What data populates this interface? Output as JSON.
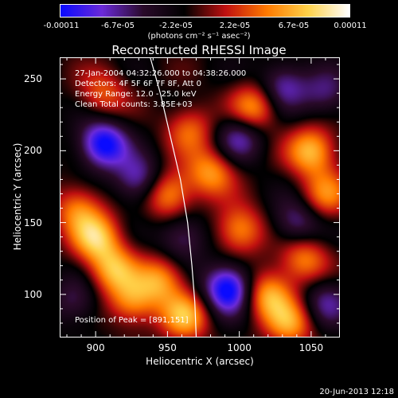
{
  "colorbar": {
    "ticks": [
      "-0.00011",
      "-6.7e-05",
      "-2.2e-05",
      "2.2e-05",
      "6.7e-05",
      "0.00011"
    ],
    "units": "(photons cm⁻² s⁻¹ asec⁻²)",
    "colors": [
      "#0a0aff",
      "#6b2ad8",
      "#2a0a2a",
      "#000000",
      "#c01010",
      "#ff7a00",
      "#ffd24a",
      "#ffffff"
    ]
  },
  "info": {
    "time_range": "27-Jan-2004 04:32:26.000 to 04:38:26.000",
    "detectors": "Detectors: 4F 5F 6F 7F 8F, Att 0",
    "energy": "Energy Range: 12.0 - 25.0 keV",
    "clean": "Clean    Total counts: 3.85E+03",
    "peak": "Position of Peak = [891,151]"
  },
  "stamp": "20-Jun-2013 12:18",
  "chart_data": {
    "type": "heatmap",
    "title": "Reconstructed RHESSI Image",
    "xlabel": "Heliocentric X (arcsec)",
    "ylabel": "Heliocentric Y (arcsec)",
    "xlim": [
      875,
      1070
    ],
    "ylim": [
      70,
      265
    ],
    "xticks": [
      "900",
      "950",
      "1000",
      "1050"
    ],
    "yticks": [
      "100",
      "150",
      "200",
      "250"
    ],
    "xtick_values": [
      900,
      950,
      1000,
      1050
    ],
    "ytick_values": [
      100,
      150,
      200,
      250
    ],
    "zlim": [
      -0.00011,
      0.00011
    ],
    "limb_curve": [
      [
        938,
        265
      ],
      [
        945,
        240
      ],
      [
        952,
        210
      ],
      [
        959,
        180
      ],
      [
        964,
        150
      ],
      [
        967,
        120
      ],
      [
        969,
        95
      ],
      [
        970,
        70
      ]
    ],
    "blobs": [
      {
        "x": 900,
        "y": 140,
        "v": 8.5e-05
      },
      {
        "x": 887,
        "y": 160,
        "v": 6e-05
      },
      {
        "x": 912,
        "y": 118,
        "v": 7.5e-05
      },
      {
        "x": 925,
        "y": 95,
        "v": 6.5e-05
      },
      {
        "x": 950,
        "y": 170,
        "v": 7.5e-05
      },
      {
        "x": 945,
        "y": 110,
        "v": 7e-05
      },
      {
        "x": 962,
        "y": 85,
        "v": 8e-05
      },
      {
        "x": 980,
        "y": 185,
        "v": 7e-05
      },
      {
        "x": 1010,
        "y": 230,
        "v": 7.5e-05
      },
      {
        "x": 1050,
        "y": 200,
        "v": 8.5e-05
      },
      {
        "x": 1060,
        "y": 170,
        "v": 6e-05
      },
      {
        "x": 1000,
        "y": 145,
        "v": 7e-05
      },
      {
        "x": 1020,
        "y": 100,
        "v": 8e-05
      },
      {
        "x": 1045,
        "y": 125,
        "v": 6.5e-05
      },
      {
        "x": 1035,
        "y": 80,
        "v": 7e-05
      },
      {
        "x": 965,
        "y": 215,
        "v": 5.5e-05
      },
      {
        "x": 905,
        "y": 240,
        "v": 5e-05
      },
      {
        "x": 905,
        "y": 205,
        "v": -0.0001
      },
      {
        "x": 992,
        "y": 104,
        "v": -0.00011
      },
      {
        "x": 930,
        "y": 180,
        "v": -6.5e-05
      },
      {
        "x": 1000,
        "y": 210,
        "v": -6e-05
      },
      {
        "x": 1030,
        "y": 245,
        "v": -6e-05
      },
      {
        "x": 1040,
        "y": 150,
        "v": -5.5e-05
      },
      {
        "x": 960,
        "y": 140,
        "v": -5e-05
      },
      {
        "x": 1060,
        "y": 95,
        "v": -5e-05
      },
      {
        "x": 1060,
        "y": 240,
        "v": -4.5e-05
      },
      {
        "x": 885,
        "y": 95,
        "v": -4e-05
      }
    ]
  }
}
